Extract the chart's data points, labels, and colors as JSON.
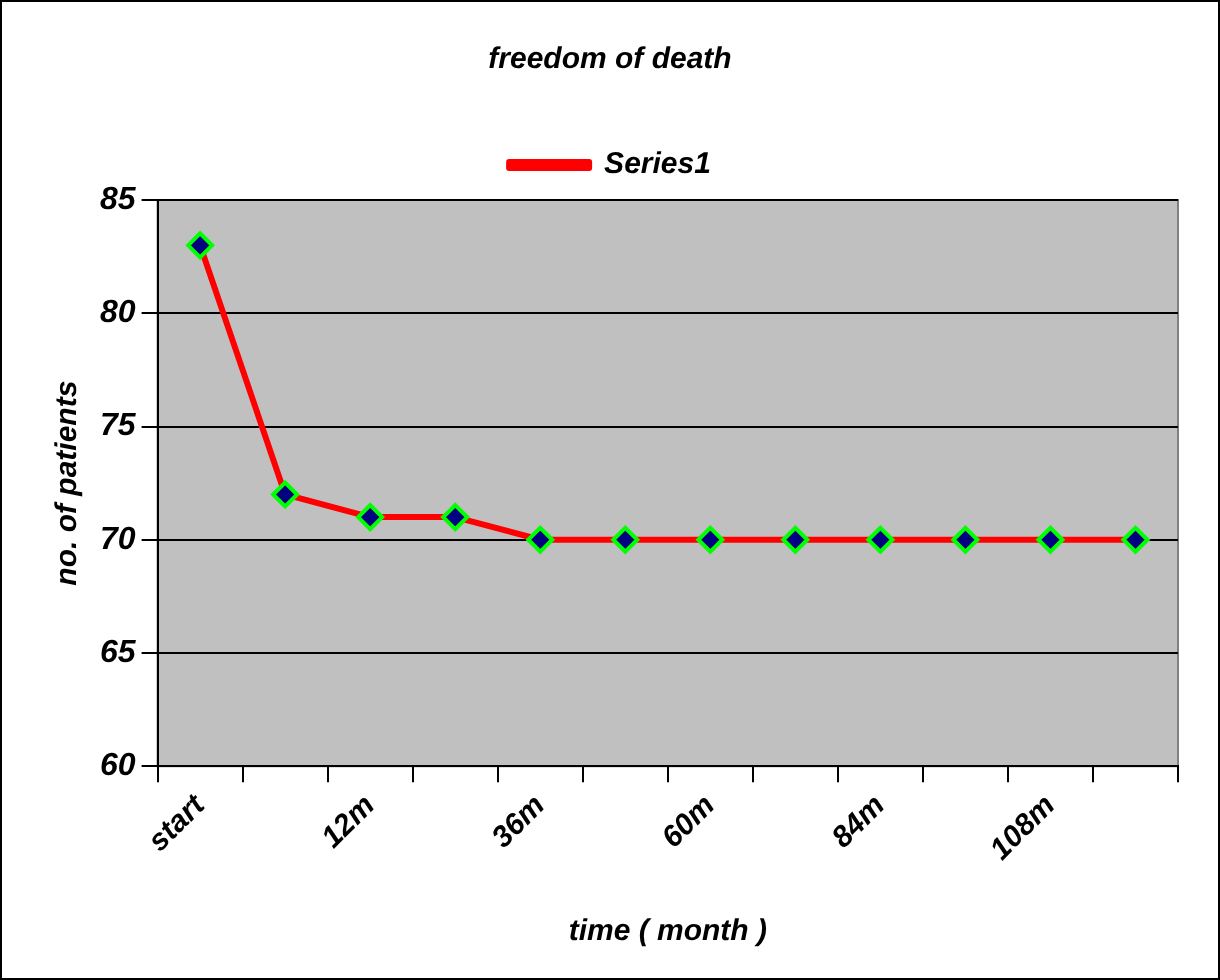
{
  "chart_data": {
    "type": "line",
    "title": "freedom of death",
    "xlabel": "time ( month )",
    "ylabel": "no. of patients",
    "categories": [
      "start",
      null,
      "12m",
      null,
      "36m",
      null,
      "60m",
      null,
      "84m",
      null,
      "108m",
      null
    ],
    "series": [
      {
        "name": "Series1",
        "color": "#ff0000",
        "values": [
          83,
          72,
          71,
          71,
          70,
          70,
          70,
          70,
          70,
          70,
          70,
          70
        ]
      }
    ],
    "ylim": [
      60,
      85
    ],
    "yticks": [
      60,
      65,
      70,
      75,
      80,
      85
    ],
    "grid": "y",
    "legend": "top",
    "marker": "diamond",
    "line_style": "solid"
  }
}
